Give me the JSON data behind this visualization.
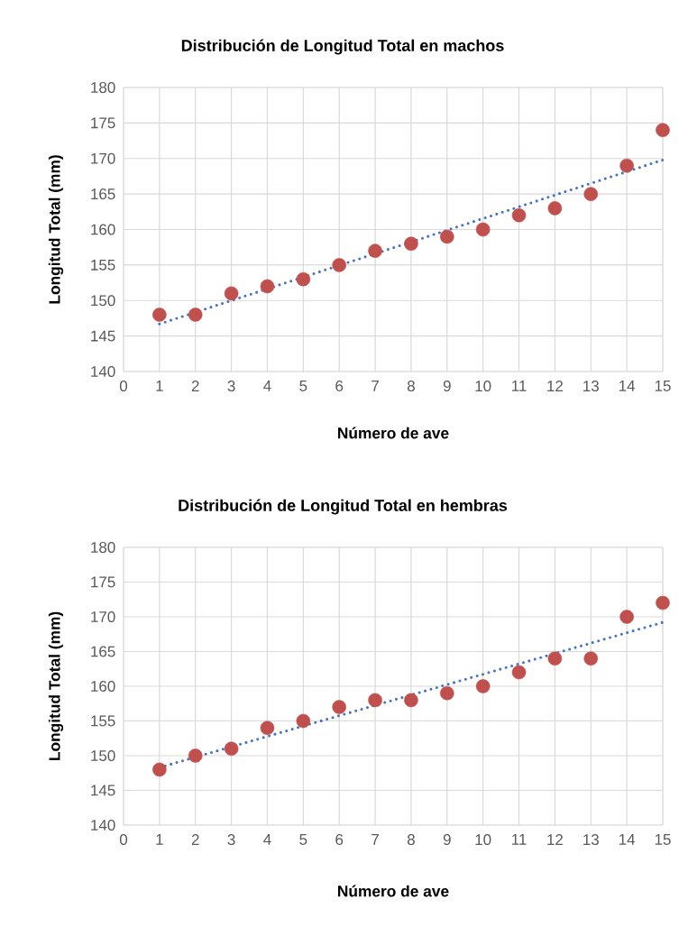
{
  "chart_data": [
    {
      "type": "scatter",
      "title": "Distribución de Longitud Total en machos",
      "xlabel": "Número de ave",
      "ylabel": "Longitud Total (mm)",
      "xlim": [
        0,
        15
      ],
      "xticks": [
        0,
        1,
        2,
        3,
        4,
        5,
        6,
        7,
        8,
        9,
        10,
        11,
        12,
        13,
        14,
        15
      ],
      "ylim": [
        140,
        180
      ],
      "yticks": [
        140,
        145,
        150,
        155,
        160,
        165,
        170,
        175,
        180
      ],
      "grid": true,
      "series": [
        {
          "color": "#c0504d",
          "marker": "circle",
          "x": [
            1,
            2,
            3,
            4,
            5,
            6,
            7,
            8,
            9,
            10,
            11,
            12,
            13,
            14,
            15
          ],
          "values": [
            148,
            148,
            151,
            152,
            153,
            155,
            157,
            158,
            159,
            160,
            162,
            163,
            165,
            169,
            174
          ]
        },
        {
          "type": "line",
          "color": "#4472c4",
          "line_style": "dotted",
          "marker": "none",
          "x": [
            1,
            15
          ],
          "values": [
            146.7,
            169.8
          ]
        }
      ]
    },
    {
      "type": "scatter",
      "title": "Distribución de Longitud Total en hembras",
      "xlabel": "Número de ave",
      "ylabel": "Longitud Total (mm)",
      "xlim": [
        0,
        15
      ],
      "xticks": [
        0,
        1,
        2,
        3,
        4,
        5,
        6,
        7,
        8,
        9,
        10,
        11,
        12,
        13,
        14,
        15
      ],
      "ylim": [
        140,
        180
      ],
      "yticks": [
        140,
        145,
        150,
        155,
        160,
        165,
        170,
        175,
        180
      ],
      "grid": true,
      "series": [
        {
          "color": "#c0504d",
          "marker": "circle",
          "x": [
            1,
            2,
            3,
            4,
            5,
            6,
            7,
            8,
            9,
            10,
            11,
            12,
            13,
            14,
            15
          ],
          "values": [
            148,
            150,
            151,
            154,
            155,
            157,
            158,
            158,
            159,
            160,
            162,
            164,
            164,
            170,
            172
          ]
        },
        {
          "type": "line",
          "color": "#4472c4",
          "line_style": "dotted",
          "marker": "none",
          "x": [
            1,
            15
          ],
          "values": [
            148.3,
            169.2
          ]
        }
      ]
    }
  ]
}
